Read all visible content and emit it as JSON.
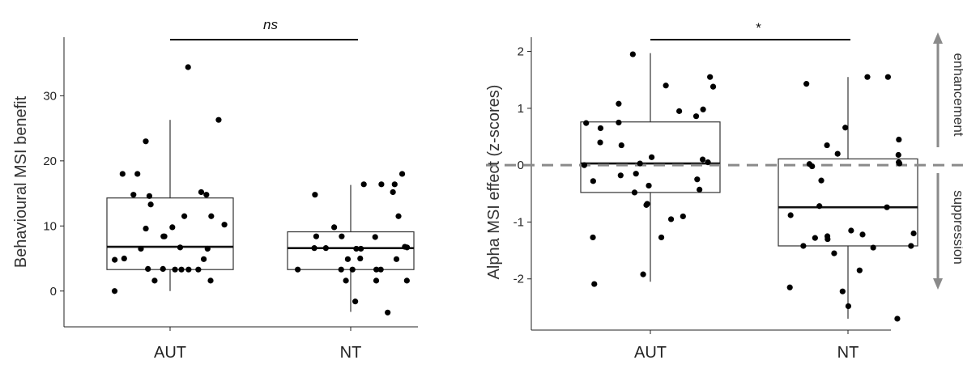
{
  "chart_data": [
    {
      "type": "box",
      "ylabel": "Behavioural MSI benefit",
      "ylim": [
        -5.5,
        39
      ],
      "yticks": [
        0,
        10,
        20,
        30
      ],
      "categories": [
        "AUT",
        "NT"
      ],
      "significance": {
        "label": "ns",
        "italic": true,
        "between": [
          "AUT",
          "NT"
        ]
      },
      "boxes": [
        {
          "category": "AUT",
          "whisker_low": 0,
          "q1": 3.3,
          "median": 6.8,
          "q3": 14.3,
          "whisker_high": 26.3
        },
        {
          "category": "NT",
          "whisker_low": -3.2,
          "q1": 3.3,
          "median": 6.6,
          "q3": 9.1,
          "whisker_high": 16.3
        }
      ],
      "points": [
        {
          "category": "AUT",
          "values": [
            34.4,
            26.3,
            23.0,
            18.0,
            18.0,
            15.2,
            14.8,
            14.6,
            14.8,
            13.3,
            11.5,
            11.5,
            10.2,
            9.8,
            9.6,
            8.4,
            8.4,
            6.7,
            6.5,
            6.5,
            5.0,
            4.9,
            4.8,
            3.4,
            3.4,
            3.3,
            3.3,
            3.3,
            3.3,
            1.6,
            1.6,
            0.0
          ]
        },
        {
          "category": "NT",
          "values": [
            18.0,
            16.4,
            16.4,
            16.4,
            15.2,
            14.8,
            11.5,
            9.8,
            8.4,
            8.4,
            8.3,
            6.8,
            6.7,
            6.6,
            6.6,
            6.5,
            6.5,
            5.0,
            4.9,
            4.9,
            3.3,
            3.3,
            3.3,
            3.3,
            3.3,
            1.6,
            1.6,
            1.6,
            -1.6,
            -3.3
          ]
        }
      ]
    },
    {
      "type": "box",
      "ylabel": "Alpha MSI effect (z-scores)",
      "ylim": [
        -2.9,
        2.25
      ],
      "yticks": [
        -2,
        -1,
        0,
        1,
        2
      ],
      "categories": [
        "AUT",
        "NT"
      ],
      "significance": {
        "label": "*",
        "italic": false,
        "between": [
          "AUT",
          "NT"
        ]
      },
      "reference_line": {
        "y": 0,
        "style": "dashed"
      },
      "annotations": [
        {
          "text": "enhancement",
          "direction": "up"
        },
        {
          "text": "suppression",
          "direction": "down"
        }
      ],
      "boxes": [
        {
          "category": "AUT",
          "whisker_low": -2.05,
          "q1": -0.48,
          "median": 0.03,
          "q3": 0.76,
          "whisker_high": 1.97
        },
        {
          "category": "NT",
          "whisker_low": -2.7,
          "q1": -1.42,
          "median": -0.74,
          "q3": 0.11,
          "whisker_high": 1.55
        }
      ],
      "points": [
        {
          "category": "AUT",
          "values": [
            1.95,
            1.55,
            1.4,
            1.38,
            1.08,
            0.98,
            0.95,
            0.86,
            0.75,
            0.74,
            0.65,
            0.4,
            0.35,
            0.14,
            0.1,
            0.05,
            0.03,
            0.0,
            -0.15,
            -0.18,
            -0.25,
            -0.28,
            -0.36,
            -0.43,
            -0.48,
            -0.68,
            -0.7,
            -0.9,
            -0.95,
            -1.27,
            -1.27,
            -1.92,
            -2.09
          ]
        },
        {
          "category": "NT",
          "values": [
            1.55,
            1.55,
            1.43,
            0.66,
            0.45,
            0.35,
            0.2,
            0.18,
            0.05,
            0.03,
            0.02,
            -0.02,
            -0.27,
            -0.72,
            -0.74,
            -0.88,
            -1.15,
            -1.2,
            -1.22,
            -1.25,
            -1.28,
            -1.3,
            -1.42,
            -1.42,
            -1.45,
            -1.55,
            -1.85,
            -2.15,
            -2.22,
            -2.48,
            -2.7
          ]
        }
      ]
    }
  ]
}
